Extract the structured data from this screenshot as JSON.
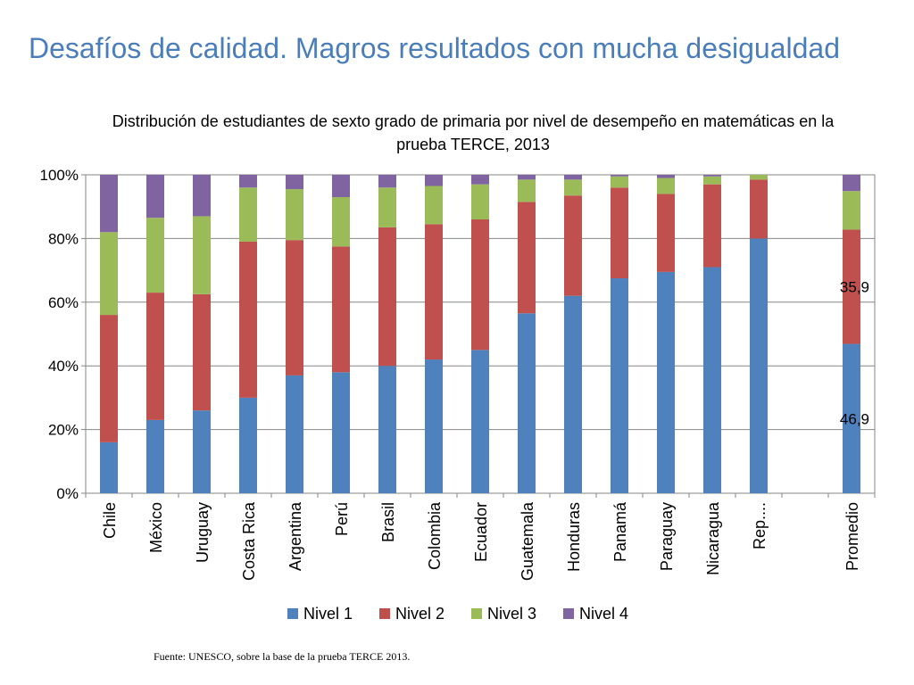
{
  "slide": {
    "title": "Desafíos de calidad. Magros resultados con mucha desigualdad",
    "source": "Fuente: UNESCO, sobre la base de la  prueba TERCE 2013."
  },
  "chart_data": {
    "type": "bar",
    "stacked": true,
    "title": "Distribución de estudiantes de sexto grado de primaria por nivel de desempeño en matemáticas en la prueba TERCE, 2013",
    "categories": [
      "Chile",
      "México",
      "Uruguay",
      "Costa Rica",
      "Argentina",
      "Perú",
      "Brasil",
      "Colombia",
      "Ecuador",
      "Guatemala",
      "Honduras",
      "Panamá",
      "Paraguay",
      "Nicaragua",
      "Rep....",
      "",
      "Promedio"
    ],
    "series": [
      {
        "name": "Nivel 1",
        "color": "#4f81bd",
        "values": [
          16,
          23,
          26,
          30,
          37,
          38,
          40,
          42,
          45,
          56.5,
          62,
          67.5,
          69.5,
          71,
          80,
          null,
          46.9
        ]
      },
      {
        "name": "Nivel 2",
        "color": "#c0504d",
        "values": [
          40,
          40,
          36.5,
          49,
          42.5,
          39.5,
          43.5,
          42.5,
          41,
          35,
          31.5,
          28.5,
          24.5,
          26,
          18.5,
          null,
          35.9
        ]
      },
      {
        "name": "Nivel 3",
        "color": "#9bbb59",
        "values": [
          26,
          23.5,
          24.5,
          17,
          16,
          15.5,
          12.5,
          12,
          11,
          7,
          5,
          3.5,
          5,
          2.5,
          1.5,
          null,
          12.1
        ]
      },
      {
        "name": "Nivel 4",
        "color": "#8064a2",
        "values": [
          18,
          13.5,
          13,
          4,
          4.5,
          7,
          4,
          3.5,
          3,
          1.5,
          1.5,
          0.5,
          1,
          0.5,
          0,
          null,
          5.1
        ]
      }
    ],
    "data_labels": [
      {
        "category": "Promedio",
        "series": "Nivel 1",
        "text": "46,9"
      },
      {
        "category": "Promedio",
        "series": "Nivel 2",
        "text": "35,9"
      }
    ],
    "ylim": [
      0,
      100
    ],
    "yticks": [
      "0%",
      "20%",
      "40%",
      "60%",
      "80%",
      "100%"
    ],
    "grid": true,
    "legend_position": "bottom"
  }
}
